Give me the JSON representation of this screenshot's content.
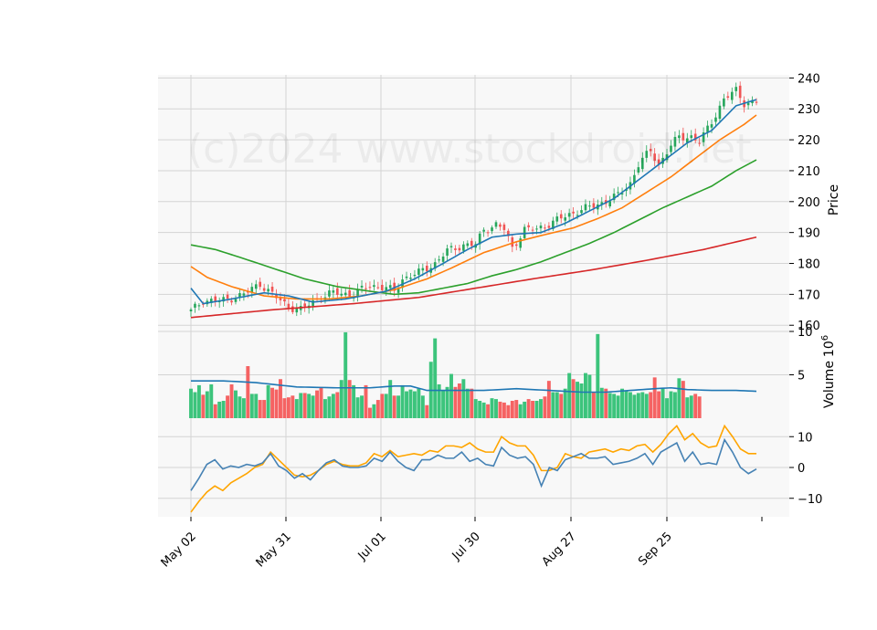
{
  "watermark": "(c)2024 www.stockdroid.net",
  "colors": {
    "up": "#26a65b",
    "down": "#f05454",
    "vol_up": "#3cc47c",
    "vol_down": "#f56363",
    "sma_fast": "#1f77b4",
    "sma_mid": "#ff7f0e",
    "sma_slow": "#2ca02c",
    "sma_long": "#d62728",
    "vol_avg": "#1f77b4",
    "osc_line": "#4682b4",
    "osc_signal": "#ffa500",
    "panel_bg": "#f8f8f8",
    "grid": "#d4d4d4"
  },
  "chart_data": {
    "type": "candlestick",
    "title": "",
    "x_ticks": [
      "May 02",
      "May 31",
      "Jul 01",
      "Jul 30",
      "Aug 27",
      "Sep 25"
    ],
    "price_panel": {
      "ylabel": "Price",
      "ylim": [
        158,
        241
      ],
      "yticks": [
        160,
        170,
        180,
        190,
        200,
        210,
        220,
        230,
        240
      ],
      "close_anchors": [
        [
          0,
          164.5
        ],
        [
          3,
          168
        ],
        [
          8,
          168
        ],
        [
          13,
          170
        ],
        [
          17,
          173.5
        ],
        [
          20,
          170
        ],
        [
          24,
          166
        ],
        [
          27,
          165
        ],
        [
          31,
          168.5
        ],
        [
          35,
          170.5
        ],
        [
          40,
          170
        ],
        [
          44,
          173
        ],
        [
          48,
          172
        ],
        [
          50,
          171
        ],
        [
          52,
          175
        ],
        [
          56,
          177
        ],
        [
          60,
          180
        ],
        [
          63,
          184
        ],
        [
          67,
          186
        ],
        [
          70,
          186
        ],
        [
          72,
          191
        ],
        [
          75,
          192.5
        ],
        [
          77,
          191
        ],
        [
          79,
          185
        ],
        [
          82,
          191
        ],
        [
          85,
          191
        ],
        [
          90,
          194
        ],
        [
          95,
          197
        ],
        [
          100,
          199
        ],
        [
          105,
          202
        ],
        [
          108,
          206
        ],
        [
          110,
          212
        ],
        [
          113,
          216.5
        ],
        [
          115,
          212
        ],
        [
          118,
          218
        ],
        [
          120,
          221
        ],
        [
          123,
          221
        ],
        [
          125,
          219
        ],
        [
          128,
          226
        ],
        [
          131,
          233
        ],
        [
          134,
          236
        ],
        [
          136,
          232
        ],
        [
          139,
          232
        ]
      ],
      "sma_fast": [
        [
          0,
          172
        ],
        [
          3,
          167
        ],
        [
          10,
          168.5
        ],
        [
          18,
          170.5
        ],
        [
          24,
          169.5
        ],
        [
          30,
          167.5
        ],
        [
          38,
          168.5
        ],
        [
          48,
          171
        ],
        [
          55,
          175
        ],
        [
          62,
          180
        ],
        [
          68,
          184.5
        ],
        [
          74,
          188.5
        ],
        [
          80,
          189.5
        ],
        [
          86,
          190
        ],
        [
          92,
          193
        ],
        [
          98,
          197
        ],
        [
          104,
          201
        ],
        [
          110,
          207
        ],
        [
          116,
          213
        ],
        [
          122,
          219
        ],
        [
          128,
          223
        ],
        [
          134,
          231
        ],
        [
          139,
          233
        ]
      ],
      "sma_mid": [
        [
          0,
          179
        ],
        [
          4,
          175.5
        ],
        [
          10,
          172.5
        ],
        [
          18,
          169.5
        ],
        [
          26,
          168.5
        ],
        [
          34,
          168.5
        ],
        [
          42,
          169.5
        ],
        [
          50,
          171.5
        ],
        [
          58,
          175
        ],
        [
          64,
          178.5
        ],
        [
          72,
          183.5
        ],
        [
          80,
          187
        ],
        [
          86,
          189
        ],
        [
          94,
          191.5
        ],
        [
          100,
          194.5
        ],
        [
          106,
          198
        ],
        [
          112,
          203
        ],
        [
          118,
          208
        ],
        [
          124,
          214
        ],
        [
          130,
          220
        ],
        [
          136,
          225
        ],
        [
          139,
          228
        ]
      ],
      "sma_slow": [
        [
          0,
          186
        ],
        [
          6,
          184.5
        ],
        [
          12,
          182
        ],
        [
          20,
          178.5
        ],
        [
          28,
          175
        ],
        [
          36,
          172.5
        ],
        [
          44,
          171
        ],
        [
          50,
          170
        ],
        [
          56,
          170.5
        ],
        [
          62,
          172
        ],
        [
          68,
          173.5
        ],
        [
          74,
          176
        ],
        [
          80,
          178
        ],
        [
          86,
          180.5
        ],
        [
          92,
          183.5
        ],
        [
          98,
          186.5
        ],
        [
          104,
          190
        ],
        [
          110,
          194
        ],
        [
          116,
          198
        ],
        [
          122,
          201.5
        ],
        [
          128,
          205
        ],
        [
          134,
          210
        ],
        [
          139,
          213.5
        ]
      ],
      "sma_long": [
        [
          0,
          162.5
        ],
        [
          20,
          165
        ],
        [
          40,
          167
        ],
        [
          56,
          169
        ],
        [
          70,
          172
        ],
        [
          84,
          175
        ],
        [
          98,
          177.8
        ],
        [
          112,
          181
        ],
        [
          126,
          184.5
        ],
        [
          139,
          188.5
        ]
      ]
    },
    "volume_panel": {
      "ylabel": "Volume",
      "scale_label": "10",
      "scale_exponent": "6",
      "ylim": [
        0,
        10
      ],
      "yticks": [
        5,
        10
      ],
      "values": [
        3.4,
        3.0,
        3.8,
        2.7,
        3.1,
        3.9,
        1.6,
        1.9,
        2.0,
        2.6,
        3.9,
        3.2,
        2.5,
        2.3,
        6.0,
        2.8,
        2.8,
        2.1,
        2.1,
        3.8,
        3.5,
        3.3,
        4.5,
        2.3,
        2.4,
        2.6,
        2.2,
        2.9,
        2.9,
        2.8,
        2.6,
        3.2,
        3.6,
        2.2,
        2.5,
        2.8,
        3.0,
        4.4,
        9.9,
        4.4,
        3.8,
        2.4,
        2.6,
        3.8,
        1.2,
        1.6,
        2.1,
        2.8,
        2.8,
        4.4,
        2.6,
        2.6,
        3.8,
        3.1,
        3.3,
        3.1,
        3.4,
        2.6,
        1.5,
        6.5,
        9.2,
        3.9,
        3.2,
        3.6,
        5.1,
        3.6,
        4.0,
        4.5,
        3.4,
        3.4,
        2.2,
        2.0,
        1.8,
        1.6,
        2.3,
        2.2,
        1.9,
        1.8,
        1.5,
        2.0,
        2.1,
        1.6,
        1.9,
        2.2,
        2.0,
        2.0,
        2.2,
        2.5,
        4.3,
        3.0,
        3.0,
        2.8,
        3.4,
        5.2,
        4.5,
        4.2,
        4.0,
        5.2,
        5.0,
        3.0,
        9.7,
        3.5,
        3.4,
        2.9,
        2.8,
        2.6,
        3.4,
        3.2,
        3.0,
        2.7,
        2.9,
        3.0,
        2.8,
        3.0,
        4.7,
        3.1,
        3.4,
        2.3,
        3.1,
        3.0,
        4.6,
        4.3,
        2.4,
        2.6,
        2.8,
        2.5
      ],
      "avg_anchors": [
        [
          0,
          4.3
        ],
        [
          8,
          4.3
        ],
        [
          16,
          4.1
        ],
        [
          26,
          3.6
        ],
        [
          36,
          3.5
        ],
        [
          44,
          3.5
        ],
        [
          50,
          3.7
        ],
        [
          54,
          3.7
        ],
        [
          58,
          3.2
        ],
        [
          64,
          3.2
        ],
        [
          72,
          3.2
        ],
        [
          80,
          3.4
        ],
        [
          88,
          3.2
        ],
        [
          96,
          3.0
        ],
        [
          102,
          3.0
        ],
        [
          108,
          3.2
        ],
        [
          114,
          3.4
        ],
        [
          118,
          3.5
        ],
        [
          122,
          3.3
        ],
        [
          128,
          3.2
        ],
        [
          134,
          3.2
        ],
        [
          139,
          3.1
        ]
      ]
    },
    "oscillator_panel": {
      "ylim": [
        -16,
        16
      ],
      "yticks": [
        -10,
        0,
        10
      ],
      "line": [
        [
          0,
          -7.5
        ],
        [
          2,
          -3.5
        ],
        [
          4,
          1
        ],
        [
          6,
          2.5
        ],
        [
          8,
          -0.5
        ],
        [
          10,
          0.5
        ],
        [
          12,
          0
        ],
        [
          14,
          1
        ],
        [
          16,
          0.5
        ],
        [
          18,
          1.5
        ],
        [
          20,
          4.5
        ],
        [
          22,
          0.5
        ],
        [
          24,
          -1
        ],
        [
          26,
          -3.5
        ],
        [
          28,
          -2
        ],
        [
          30,
          -4
        ],
        [
          32,
          -1
        ],
        [
          34,
          1.5
        ],
        [
          36,
          2.5
        ],
        [
          38,
          0.5
        ],
        [
          40,
          0
        ],
        [
          42,
          0
        ],
        [
          44,
          0.5
        ],
        [
          46,
          3
        ],
        [
          48,
          2
        ],
        [
          50,
          5
        ],
        [
          52,
          2
        ],
        [
          54,
          0
        ],
        [
          56,
          -1
        ],
        [
          58,
          2.5
        ],
        [
          60,
          2.5
        ],
        [
          62,
          4
        ],
        [
          64,
          3
        ],
        [
          66,
          3
        ],
        [
          68,
          5
        ],
        [
          70,
          2
        ],
        [
          72,
          3
        ],
        [
          74,
          1
        ],
        [
          76,
          0.5
        ],
        [
          78,
          6.5
        ],
        [
          80,
          4
        ],
        [
          82,
          3
        ],
        [
          84,
          3.5
        ],
        [
          86,
          1
        ],
        [
          88,
          -6
        ],
        [
          90,
          0
        ],
        [
          92,
          -1
        ],
        [
          94,
          2.5
        ],
        [
          96,
          3.5
        ],
        [
          98,
          4.5
        ],
        [
          100,
          3
        ],
        [
          102,
          3
        ],
        [
          104,
          3.5
        ],
        [
          106,
          1
        ],
        [
          108,
          1.5
        ],
        [
          110,
          2
        ],
        [
          112,
          3
        ],
        [
          114,
          4.5
        ],
        [
          116,
          1
        ],
        [
          118,
          5
        ],
        [
          120,
          6.5
        ],
        [
          122,
          8
        ],
        [
          124,
          2
        ],
        [
          126,
          5
        ],
        [
          128,
          1
        ],
        [
          130,
          1.5
        ],
        [
          132,
          1
        ],
        [
          134,
          9
        ],
        [
          136,
          5
        ],
        [
          138,
          0
        ],
        [
          140,
          -2
        ],
        [
          142,
          -0.5
        ]
      ],
      "signal": [
        [
          0,
          -14.5
        ],
        [
          2,
          -11
        ],
        [
          4,
          -8
        ],
        [
          6,
          -6
        ],
        [
          8,
          -7.5
        ],
        [
          10,
          -5
        ],
        [
          12,
          -3.5
        ],
        [
          14,
          -2
        ],
        [
          16,
          0
        ],
        [
          18,
          1
        ],
        [
          20,
          5
        ],
        [
          22,
          2.5
        ],
        [
          24,
          0
        ],
        [
          26,
          -2.5
        ],
        [
          28,
          -3
        ],
        [
          30,
          -2.5
        ],
        [
          32,
          -1
        ],
        [
          34,
          1
        ],
        [
          36,
          2
        ],
        [
          38,
          1
        ],
        [
          40,
          0.5
        ],
        [
          42,
          0.5
        ],
        [
          44,
          1.5
        ],
        [
          46,
          4.5
        ],
        [
          48,
          3.5
        ],
        [
          50,
          5.5
        ],
        [
          52,
          3.5
        ],
        [
          54,
          4
        ],
        [
          56,
          4.5
        ],
        [
          58,
          4
        ],
        [
          60,
          5.5
        ],
        [
          62,
          5
        ],
        [
          64,
          7
        ],
        [
          66,
          7
        ],
        [
          68,
          6.5
        ],
        [
          70,
          8
        ],
        [
          72,
          6
        ],
        [
          74,
          5
        ],
        [
          76,
          5
        ],
        [
          78,
          10
        ],
        [
          80,
          8
        ],
        [
          82,
          7
        ],
        [
          84,
          7
        ],
        [
          86,
          4
        ],
        [
          88,
          -1
        ],
        [
          90,
          -1
        ],
        [
          92,
          0
        ],
        [
          94,
          4.5
        ],
        [
          96,
          3.5
        ],
        [
          98,
          3
        ],
        [
          100,
          5
        ],
        [
          102,
          5.5
        ],
        [
          104,
          6
        ],
        [
          106,
          5
        ],
        [
          108,
          6
        ],
        [
          110,
          5.5
        ],
        [
          112,
          7
        ],
        [
          114,
          7.5
        ],
        [
          116,
          5
        ],
        [
          118,
          7.5
        ],
        [
          120,
          11
        ],
        [
          122,
          13.5
        ],
        [
          124,
          9
        ],
        [
          126,
          11
        ],
        [
          128,
          8
        ],
        [
          130,
          6.5
        ],
        [
          132,
          7
        ],
        [
          134,
          13.5
        ],
        [
          136,
          10
        ],
        [
          138,
          6
        ],
        [
          140,
          4.5
        ],
        [
          142,
          4.5
        ]
      ]
    }
  }
}
